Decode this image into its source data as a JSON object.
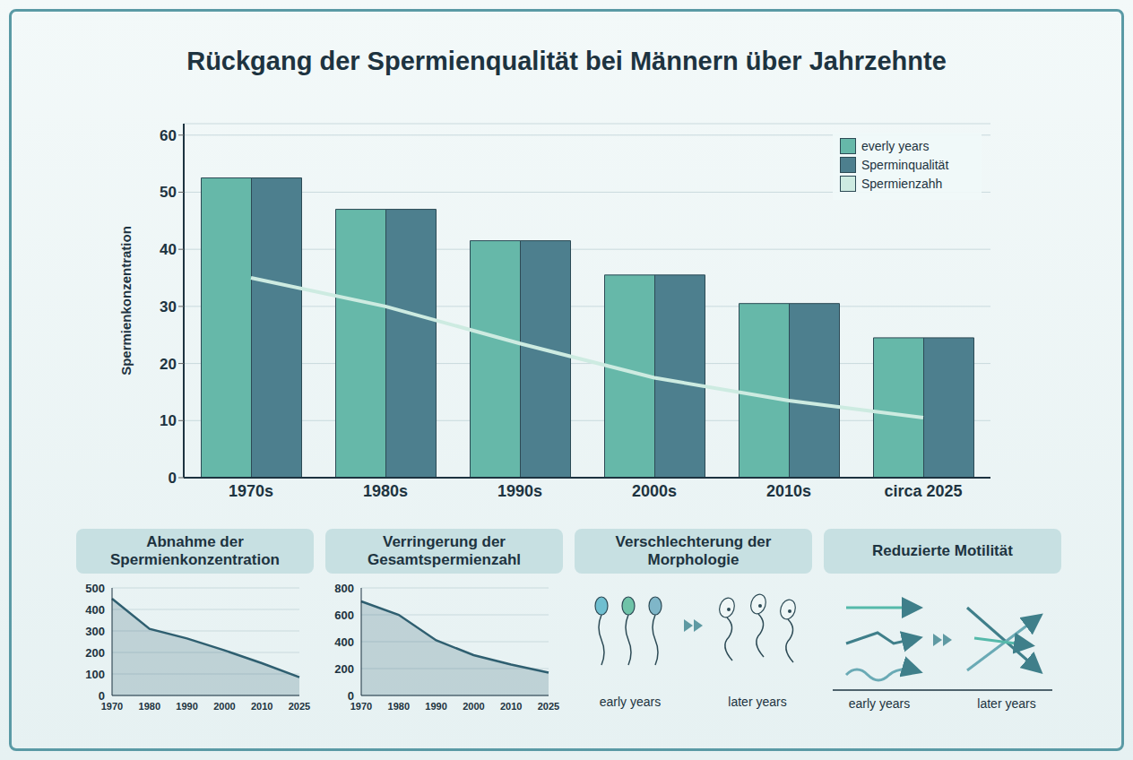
{
  "title": "Rückgang der Spermienqualität bei Männern über Jahrzehnte",
  "chart_data": [
    {
      "type": "bar",
      "categories": [
        "1970s",
        "1980s",
        "1990s",
        "2000s",
        "2010s",
        "circa 2025"
      ],
      "series": [
        {
          "name": "everly years",
          "color": "#66b8a9",
          "values": [
            52.5,
            47,
            41.5,
            35.5,
            30.5,
            24.5
          ]
        },
        {
          "name": "Sperminqualität",
          "color": "#4d7f8e",
          "values": [
            52.5,
            47,
            41.5,
            35.5,
            30.5,
            24.5
          ]
        },
        {
          "name": "Spermienzahh",
          "type": "line",
          "color": "#cdebe1",
          "values": [
            35,
            30,
            23.5,
            17.5,
            13.5,
            10.5
          ]
        }
      ],
      "y_label": "Spermienkonzentration",
      "ylim": [
        0,
        62
      ],
      "yticks": [
        0,
        10,
        20,
        30,
        40,
        50,
        60
      ],
      "grid": true,
      "legend": "upper right"
    },
    {
      "type": "area",
      "title": "Abnahme der Spermienkonzentration",
      "categories": [
        "1970",
        "1980",
        "1990",
        "2000",
        "2010",
        "2025"
      ],
      "values": [
        450,
        310,
        265,
        210,
        150,
        85
      ],
      "color": "#2f5f70",
      "ylim": [
        0,
        500
      ],
      "yticks": [
        0,
        100,
        200,
        300,
        400,
        500
      ],
      "grid": true
    },
    {
      "type": "area",
      "title": "Verringerung der Gesamtspermienzahl",
      "categories": [
        "1970",
        "1980",
        "1990",
        "2000",
        "2010",
        "2025"
      ],
      "values": [
        700,
        600,
        410,
        300,
        230,
        170
      ],
      "color": "#2f5f70",
      "ylim": [
        0,
        800
      ],
      "yticks": [
        0,
        200,
        400,
        600,
        800
      ],
      "grid": true
    }
  ],
  "panels": [
    {
      "title": "Verschlechterung der Morphologie",
      "labels": [
        "early years",
        "later years"
      ]
    },
    {
      "title": "Reduzierte Motilität",
      "labels": [
        "early years",
        "later years"
      ]
    }
  ]
}
